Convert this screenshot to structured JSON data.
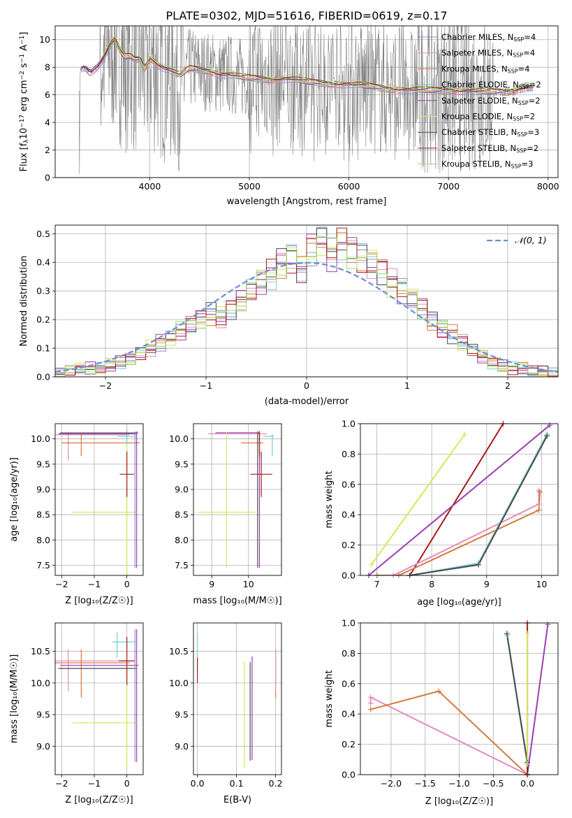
{
  "figure_title": "PLATE=0302, MJD=51616, FIBERID=0619, z=0.17",
  "models": [
    {
      "key": "chab_miles",
      "label": "Chabrier MILES, N",
      "sub": "SSP",
      "eq": "=4",
      "color": "#8c8cd8"
    },
    {
      "key": "salp_miles",
      "label": "Salpeter MILES, N",
      "sub": "SSP",
      "eq": "=4",
      "color": "#e48bbf"
    },
    {
      "key": "krou_miles",
      "label": "Kroupa MILES, N",
      "sub": "SSP",
      "eq": "=4",
      "color": "#d67a3c"
    },
    {
      "key": "chab_elodie",
      "label": "Chabrier ELODIE, N",
      "sub": "SSP",
      "eq": "=2",
      "color": "#74cbd3"
    },
    {
      "key": "salp_elodie",
      "label": "Salpeter ELODIE, N",
      "sub": "SSP",
      "eq": "=2",
      "color": "#9d3db0"
    },
    {
      "key": "krou_elodie",
      "label": "Kroupa ELODIE, N",
      "sub": "SSP",
      "eq": "=2",
      "color": "#d5e85c"
    },
    {
      "key": "chab_stelib",
      "label": "Chabrier STELIB, N",
      "sub": "SSP",
      "eq": "=3",
      "color": "#4a4a4a"
    },
    {
      "key": "salp_stelib",
      "label": "Salpeter STELIB, N",
      "sub": "SSP",
      "eq": "=2",
      "color": "#a61c1c"
    },
    {
      "key": "krou_stelib",
      "label": "Kroupa STELIB, N",
      "sub": "SSP",
      "eq": "=3",
      "color": "#a8d86a"
    }
  ],
  "chart_data": [
    {
      "id": "spectrum",
      "type": "line",
      "xlabel": "wavelength [Angstrom, rest frame]",
      "ylabel_parts": [
        "Flux [f",
        "λ",
        "10",
        "−17",
        " erg cm",
        "−2",
        " s",
        "−1",
        " A",
        "−1",
        "]"
      ],
      "xlim": [
        3050,
        8100
      ],
      "ylim": [
        0,
        11
      ],
      "xticks": [
        4000,
        5000,
        6000,
        7000,
        8000
      ],
      "yticks": [
        0,
        2,
        4,
        6,
        8,
        10
      ],
      "data_range": [
        3290,
        7860
      ],
      "model_curve": {
        "x": [
          3300,
          3350,
          3400,
          3450,
          3500,
          3550,
          3600,
          3650,
          3700,
          3750,
          3800,
          3850,
          3900,
          3950,
          4000,
          4100,
          4200,
          4300,
          4400,
          4500,
          4600,
          4700,
          4800,
          4900,
          5000,
          5200,
          5400,
          5600,
          5800,
          6000,
          6200,
          6400,
          6600,
          6800,
          7000,
          7200,
          7400,
          7600,
          7800
        ],
        "y": [
          7.8,
          8.0,
          7.6,
          7.9,
          8.3,
          8.9,
          9.6,
          10.0,
          9.2,
          8.7,
          8.8,
          8.5,
          8.6,
          7.9,
          8.7,
          8.1,
          7.8,
          7.4,
          7.9,
          7.8,
          7.7,
          7.5,
          7.5,
          7.3,
          7.2,
          7.1,
          7.2,
          6.9,
          6.8,
          6.8,
          6.6,
          6.4,
          6.4,
          6.3,
          6.3,
          6.3,
          6.2,
          6.2,
          6.6
        ]
      }
    },
    {
      "id": "residuals",
      "type": "histogram",
      "xlabel": "(data-model)/error",
      "ylabel": "Normed distribution",
      "xlim": [
        -2.5,
        2.5
      ],
      "ylim": [
        0,
        0.53
      ],
      "xticks": [
        -2,
        -1,
        0,
        1,
        2
      ],
      "yticks": [
        0,
        0.1,
        0.2,
        0.3,
        0.4,
        0.5
      ],
      "bin_width": 0.1,
      "bin_start": -2.5,
      "values": [
        0.01,
        0.02,
        0.03,
        0.03,
        0.03,
        0.04,
        0.05,
        0.06,
        0.08,
        0.1,
        0.12,
        0.14,
        0.16,
        0.18,
        0.2,
        0.22,
        0.21,
        0.24,
        0.27,
        0.3,
        0.33,
        0.36,
        0.4,
        0.42,
        0.38,
        0.45,
        0.48,
        0.43,
        0.47,
        0.44,
        0.42,
        0.4,
        0.37,
        0.33,
        0.3,
        0.27,
        0.24,
        0.2,
        0.17,
        0.15,
        0.12,
        0.09,
        0.07,
        0.05,
        0.04,
        0.03,
        0.03,
        0.02,
        0.02,
        0.01
      ],
      "legend": "𝒩(0, 1)",
      "gaussian_color": "#6a8ed6"
    },
    {
      "id": "age_vs_Z",
      "type": "errorbar",
      "xlabel": "Z [log₁₀(Z/Z☉)]",
      "ylabel": "age  [log₁₀(age/yr)]",
      "xlim": [
        -2.2,
        0.5
      ],
      "ylim": [
        7.3,
        10.3
      ],
      "xticks": [
        -2,
        -1,
        0
      ],
      "yticks": [
        7.5,
        8.0,
        8.5,
        9.0,
        9.5,
        10.0
      ],
      "points": [
        {
          "m": "salp_miles",
          "x": -1.13,
          "xe": 1.2,
          "y": 10.08,
          "ye": 0.0
        },
        {
          "m": "salp_miles",
          "x": -1.8,
          "xe": 0,
          "y": 9.85,
          "ye": 0.28
        },
        {
          "m": "krou_miles",
          "x": -0.8,
          "xe": 1.2,
          "y": 9.92,
          "ye": 0
        },
        {
          "m": "krou_miles",
          "x": -1.4,
          "xe": 0,
          "y": 9.88,
          "ye": 0.22
        },
        {
          "m": "chab_elodie",
          "x": 0,
          "xe": 0.3,
          "y": 10.05,
          "ye": 0.15
        },
        {
          "m": "salp_elodie",
          "x": -0.85,
          "xe": 1.2,
          "y": 10.12,
          "ye": 0
        },
        {
          "m": "salp_elodie",
          "x": 0.3,
          "xe": 0,
          "y": 8.8,
          "ye": 1.35
        },
        {
          "m": "krou_elodie",
          "x": -0.7,
          "xe": 1.0,
          "y": 8.55,
          "ye": 0
        },
        {
          "m": "krou_elodie",
          "x": 0,
          "xe": 0,
          "y": 8.6,
          "ye": 1.3
        },
        {
          "m": "chab_stelib",
          "x": -0.9,
          "xe": 1.2,
          "y": 10.1,
          "ye": 0
        },
        {
          "m": "salp_stelib",
          "x": 0,
          "xe": 0.22,
          "y": 9.3,
          "ye": 0.45
        },
        {
          "m": "chab_miles",
          "x": 0.25,
          "xe": 0,
          "y": 8.8,
          "ye": 1.35
        }
      ]
    },
    {
      "id": "age_vs_mass",
      "type": "errorbar",
      "xlabel": "mass [log₁₀(M/M☉)]",
      "ylabel": "",
      "xlim": [
        8.5,
        10.9
      ],
      "ylim": [
        7.3,
        10.3
      ],
      "xticks": [
        9,
        10
      ],
      "yticks": [
        7.5,
        8.0,
        8.5,
        9.0,
        9.5,
        10.0
      ],
      "points": [
        {
          "m": "salp_miles",
          "x": 9.7,
          "xe": 0.8,
          "y": 10.1,
          "ye": 0
        },
        {
          "m": "krou_miles",
          "x": 10.1,
          "xe": 0.3,
          "y": 9.92,
          "ye": 0
        },
        {
          "m": "krou_miles",
          "x": 10.3,
          "xe": 0,
          "y": 9.9,
          "ye": 0.2
        },
        {
          "m": "chab_elodie",
          "x": 10.55,
          "xe": 0.15,
          "y": 10.05,
          "ye": 0.0
        },
        {
          "m": "chab_elodie",
          "x": 10.65,
          "xe": 0,
          "y": 9.88,
          "ye": 0.22
        },
        {
          "m": "salp_elodie",
          "x": 9.7,
          "xe": 0.6,
          "y": 10.12,
          "ye": 0
        },
        {
          "m": "salp_elodie",
          "x": 10.3,
          "xe": 0,
          "y": 8.8,
          "ye": 1.35
        },
        {
          "m": "krou_elodie",
          "x": 9.4,
          "xe": 0,
          "y": 8.8,
          "ye": 1.35
        },
        {
          "m": "krou_elodie",
          "x": 9.4,
          "xe": 0.8,
          "y": 8.55,
          "ye": 0
        },
        {
          "m": "chab_stelib",
          "x": 10.25,
          "xe": 0,
          "y": 8.8,
          "ye": 1.35
        },
        {
          "m": "salp_stelib",
          "x": 10.35,
          "xe": 0.3,
          "y": 9.3,
          "ye": 0.45
        },
        {
          "m": "salp_stelib",
          "x": 10.3,
          "xe": 0,
          "y": 9.9,
          "ye": 0.25
        }
      ]
    },
    {
      "id": "mw_vs_age",
      "type": "line",
      "xlabel": "age  [log₁₀(age/yr)]",
      "ylabel": "mass weight",
      "xlim": [
        6.7,
        10.3
      ],
      "ylim": [
        0,
        1
      ],
      "xticks": [
        7,
        8,
        9,
        10
      ],
      "yticks": [
        0,
        0.2,
        0.4,
        0.6,
        0.8,
        1.0
      ],
      "series": [
        {
          "m": "krou_elodie",
          "x": [
            6.9,
            8.6
          ],
          "y": [
            0.07,
            0.93
          ]
        },
        {
          "m": "salp_stelib",
          "x": [
            7.6,
            9.3
          ],
          "y": [
            0.0,
            1.0
          ]
        },
        {
          "m": "salp_elodie",
          "x": [
            6.85,
            10.15
          ],
          "y": [
            0.0,
            0.99
          ]
        },
        {
          "m": "salp_miles",
          "x": [
            7.0,
            7.3,
            9.95,
            9.95
          ],
          "y": [
            0.0,
            0.0,
            0.47,
            0.56
          ]
        },
        {
          "m": "krou_miles",
          "x": [
            7.0,
            7.4,
            9.95,
            9.97
          ],
          "y": [
            0.0,
            0.0,
            0.43,
            0.55
          ]
        },
        {
          "m": "chab_elodie",
          "x": [
            7.6,
            8.85,
            10.1
          ],
          "y": [
            0.0,
            0.08,
            0.93
          ]
        },
        {
          "m": "chab_stelib",
          "x": [
            7.6,
            8.85,
            10.1
          ],
          "y": [
            0.0,
            0.07,
            0.92
          ]
        }
      ]
    },
    {
      "id": "mass_vs_Z",
      "type": "errorbar",
      "xlabel": "Z [log₁₀(Z/Z☉)]",
      "ylabel": "mass [log₁₀(M/M☉)]",
      "xlim": [
        -2.2,
        0.5
      ],
      "ylim": [
        8.55,
        10.95
      ],
      "xticks": [
        -2,
        -1,
        0
      ],
      "yticks": [
        9.0,
        9.5,
        10.0,
        10.5
      ],
      "points": [
        {
          "m": "salp_miles",
          "x": -1.1,
          "xe": 1.2,
          "y": 10.35,
          "ye": 0
        },
        {
          "m": "salp_miles",
          "x": -1.8,
          "xe": 0,
          "y": 10.2,
          "ye": 0.33
        },
        {
          "m": "krou_miles",
          "x": -1.1,
          "xe": 1.2,
          "y": 10.32,
          "ye": 0
        },
        {
          "m": "krou_miles",
          "x": -1.4,
          "xe": 0,
          "y": 10.15,
          "ye": 0.38
        },
        {
          "m": "chab_elodie",
          "x": -0.1,
          "xe": 0.35,
          "y": 10.65,
          "ye": 0
        },
        {
          "m": "chab_elodie",
          "x": -0.3,
          "xe": 0,
          "y": 10.6,
          "ye": 0.2
        },
        {
          "m": "salp_elodie",
          "x": -0.85,
          "xe": 1.2,
          "y": 10.28,
          "ye": 0
        },
        {
          "m": "salp_elodie",
          "x": 0.3,
          "xe": 0,
          "y": 9.8,
          "ye": 1.05
        },
        {
          "m": "krou_elodie",
          "x": -0.7,
          "xe": 1.0,
          "y": 9.37,
          "ye": 0
        },
        {
          "m": "krou_elodie",
          "x": 0,
          "xe": 0,
          "y": 9.5,
          "ye": 0.85
        },
        {
          "m": "chab_stelib",
          "x": -0.9,
          "xe": 1.2,
          "y": 10.23,
          "ye": 0
        },
        {
          "m": "salp_stelib",
          "x": 0,
          "xe": 0.25,
          "y": 10.35,
          "ye": 0
        },
        {
          "m": "salp_stelib",
          "x": 0,
          "xe": 0,
          "y": 10.35,
          "ye": 0.38
        },
        {
          "m": "chab_miles",
          "x": 0.25,
          "xe": 0,
          "y": 9.8,
          "ye": 1.05
        }
      ]
    },
    {
      "id": "mass_vs_EBV",
      "type": "errorbar",
      "xlabel": "E(B-V)",
      "ylabel": "",
      "xlim": [
        -0.01,
        0.215
      ],
      "ylim": [
        8.55,
        10.95
      ],
      "xticks": [
        0.0,
        0.1,
        0.2
      ],
      "yticks": [
        9.0,
        9.5,
        10.0,
        10.5
      ],
      "points": [
        {
          "m": "chab_elodie",
          "x": 0.0,
          "xe": 0,
          "y": 10.5,
          "ye": 0.28
        },
        {
          "m": "salp_stelib",
          "x": 0.0,
          "xe": 0,
          "y": 10.2,
          "ye": 0.2
        },
        {
          "m": "krou_elodie",
          "x": 0.12,
          "xe": 0,
          "y": 9.5,
          "ye": 0.85
        },
        {
          "m": "chab_stelib",
          "x": 0.135,
          "xe": 0,
          "y": 9.55,
          "ye": 0.78
        },
        {
          "m": "salp_elodie",
          "x": 0.14,
          "xe": 0,
          "y": 9.6,
          "ye": 0.82
        },
        {
          "m": "krou_miles",
          "x": 0.2,
          "xe": 0,
          "y": 10.15,
          "ye": 0.38
        },
        {
          "m": "salp_miles",
          "x": 0.2,
          "xe": 0,
          "y": 10.2,
          "ye": 0.33
        }
      ]
    },
    {
      "id": "mw_vs_Z",
      "type": "line",
      "xlabel": "Z [log₁₀(Z/Z☉)]",
      "ylabel": "mass weight",
      "xlim": [
        -2.45,
        0.45
      ],
      "ylim": [
        0,
        1
      ],
      "xticks": [
        -2.0,
        -1.5,
        -1.0,
        -0.5,
        0.0
      ],
      "yticks": [
        0,
        0.2,
        0.4,
        0.6,
        0.8,
        1.0
      ],
      "series": [
        {
          "m": "salp_miles",
          "x": [
            -2.3,
            -2.3,
            0.0
          ],
          "y": [
            0.47,
            0.51,
            0.0
          ]
        },
        {
          "m": "krou_miles",
          "x": [
            -2.3,
            -1.3,
            0.0
          ],
          "y": [
            0.43,
            0.55,
            0.0
          ]
        },
        {
          "m": "chab_elodie",
          "x": [
            -0.3,
            0.0,
            0.0
          ],
          "y": [
            0.92,
            0.07,
            0.0
          ]
        },
        {
          "m": "chab_stelib",
          "x": [
            -0.3,
            0.0,
            0.0
          ],
          "y": [
            0.93,
            0.08,
            0.0
          ]
        },
        {
          "m": "salp_elodie",
          "x": [
            0.0,
            0.3
          ],
          "y": [
            0.0,
            0.99
          ]
        },
        {
          "m": "salp_stelib",
          "x": [
            0.0,
            0.0
          ],
          "y": [
            0.0,
            1.0
          ]
        },
        {
          "m": "krou_elodie",
          "x": [
            0.0,
            0.0
          ],
          "y": [
            0.07,
            0.93
          ]
        }
      ]
    }
  ]
}
